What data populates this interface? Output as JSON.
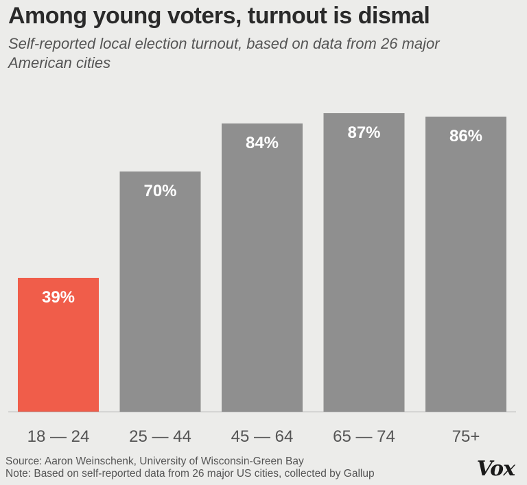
{
  "header": {
    "title": "Among young voters, turnout is dismal",
    "subtitle": "Self-reported local election turnout, based on data from 26 major American cities"
  },
  "chart_data": {
    "type": "bar",
    "categories": [
      "18 — 24",
      "25 — 44",
      "45 — 64",
      "65 — 74",
      "75+"
    ],
    "values": [
      39,
      70,
      84,
      87,
      86
    ],
    "value_labels": [
      "39%",
      "70%",
      "84%",
      "87%",
      "86%"
    ],
    "highlight_index": 0,
    "colors": {
      "bar": "#8f8f8f",
      "highlight": "#f05d4a",
      "axis": "#aaaaaa",
      "tick": "#555555",
      "label": "#ffffff"
    },
    "ylim": [
      0,
      100
    ],
    "grid": false
  },
  "footer": {
    "source": "Source: Aaron Weinschenk, University of Wisconsin-Green Bay",
    "note": "Note: Based on self-reported data from 26 major US cities, collected by Gallup",
    "logo": "Vox"
  }
}
